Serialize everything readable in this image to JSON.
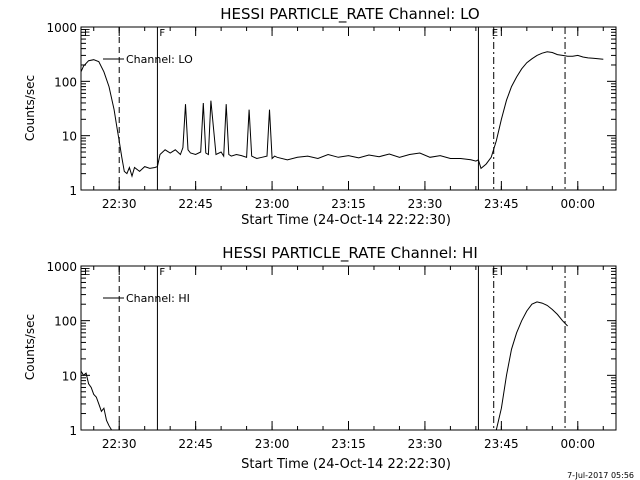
{
  "footer_date": "7-Jul-2017 05:56",
  "chart_data": [
    {
      "type": "line",
      "title": "HESSI PARTICLE_RATE Channel: LO",
      "xlabel": "Start Time (24-Oct-14 22:22:30)",
      "ylabel": "Counts/sec",
      "yscale": "log",
      "ylim": [
        1,
        1000
      ],
      "xlim": [
        "22:22:30",
        "00:07:30"
      ],
      "ytick_labels": [
        "1",
        "10",
        "100",
        "1000"
      ],
      "xtick_labels": [
        "22:30",
        "22:45",
        "23:00",
        "23:15",
        "23:30",
        "23:45",
        "00:00"
      ],
      "legend": "Channel: LO",
      "flag_labels": [
        "E",
        "F",
        "E"
      ],
      "markers": [
        {
          "style": "solid",
          "x": "22:37:30"
        },
        {
          "style": "solid",
          "x": "23:40:30"
        },
        {
          "style": "dashed",
          "x": "22:30:00"
        },
        {
          "style": "dashdot",
          "x": "23:43:30"
        },
        {
          "style": "dashdot",
          "x": "23:57:30"
        }
      ],
      "series": [
        {
          "x": [
            "22:22:30",
            "22:23:00",
            "22:24:00",
            "22:25:00",
            "22:26:00",
            "22:27:00",
            "22:28:00",
            "22:29:00",
            "22:29:30",
            "22:30:00",
            "22:30:30",
            "22:31:00",
            "22:31:30",
            "22:32:00",
            "22:32:30",
            "22:33:00",
            "22:34:00",
            "22:35:00",
            "22:36:00",
            "22:37:00",
            "22:37:30",
            "22:38:00",
            "22:39:00",
            "22:40:00",
            "22:41:00",
            "22:42:00",
            "22:42:30",
            "22:43:00",
            "22:43:30",
            "22:44:00",
            "22:45:00",
            "22:46:00",
            "22:46:30",
            "22:47:00",
            "22:47:30",
            "22:48:00",
            "22:49:00",
            "22:50:00",
            "22:50:30",
            "22:51:00",
            "22:51:30",
            "22:52:00",
            "22:53:00",
            "22:54:00",
            "22:55:00",
            "22:55:30",
            "22:56:00",
            "22:56:30",
            "22:57:00",
            "22:58:00",
            "22:59:00",
            "22:59:30",
            "23:00:00",
            "23:00:30",
            "23:01:00",
            "23:03:00",
            "23:05:00",
            "23:07:00",
            "23:09:00",
            "23:11:00",
            "23:13:00",
            "23:15:00",
            "23:17:00",
            "23:19:00",
            "23:21:00",
            "23:23:00",
            "23:25:00",
            "23:27:00",
            "23:29:00",
            "23:31:00",
            "23:33:00",
            "23:35:00",
            "23:37:00",
            "23:39:00",
            "23:40:00",
            "23:40:30",
            "23:41:00",
            "23:42:00",
            "23:43:00",
            "23:44:00",
            "23:45:00",
            "23:46:00",
            "23:47:00",
            "23:48:00",
            "23:49:00",
            "23:50:00",
            "23:51:00",
            "23:52:00",
            "23:53:00",
            "23:54:00",
            "23:55:00",
            "23:56:00",
            "23:57:00",
            "23:58:00",
            "23:59:00",
            "00:00:00",
            "00:01:00",
            "00:02:00",
            "00:03:00",
            "00:04:00",
            "00:05:00"
          ],
          "values": [
            150,
            190,
            240,
            250,
            230,
            150,
            80,
            30,
            15,
            8,
            4,
            2.2,
            2.0,
            2.6,
            1.8,
            2.6,
            2.2,
            2.7,
            2.5,
            2.6,
            2.7,
            4.5,
            5.5,
            4.8,
            5.5,
            4.5,
            6.0,
            38,
            5.5,
            4.8,
            4.5,
            5.0,
            40,
            4.8,
            4.5,
            44,
            4.5,
            5.0,
            4.2,
            38,
            4.5,
            4.2,
            4.5,
            4.3,
            4.0,
            30,
            4.2,
            4.0,
            3.8,
            4.0,
            4.2,
            30,
            3.8,
            4.2,
            4.0,
            3.6,
            4.0,
            4.2,
            3.8,
            4.5,
            4.0,
            4.3,
            3.9,
            4.4,
            4.1,
            4.6,
            4.0,
            4.5,
            4.8,
            4.0,
            4.3,
            3.8,
            3.8,
            3.6,
            3.4,
            3.6,
            2.5,
            3.0,
            4.0,
            8,
            20,
            45,
            80,
            120,
            170,
            220,
            260,
            300,
            330,
            350,
            340,
            310,
            300,
            290,
            290,
            300,
            280,
            270,
            265,
            260,
            255
          ]
        }
      ]
    },
    {
      "type": "line",
      "title": "HESSI PARTICLE_RATE Channel: HI",
      "xlabel": "Start Time (24-Oct-14 22:22:30)",
      "ylabel": "Counts/sec",
      "yscale": "log",
      "ylim": [
        1,
        1000
      ],
      "xlim": [
        "22:22:30",
        "00:07:30"
      ],
      "ytick_labels": [
        "1",
        "10",
        "100",
        "1000"
      ],
      "xtick_labels": [
        "22:30",
        "22:45",
        "23:00",
        "23:15",
        "23:30",
        "23:45",
        "00:00"
      ],
      "legend": "Channel: HI",
      "flag_labels": [
        "E",
        "F",
        "E"
      ],
      "markers": [
        {
          "style": "solid",
          "x": "22:37:30"
        },
        {
          "style": "solid",
          "x": "23:40:30"
        },
        {
          "style": "dashed",
          "x": "22:30:00"
        },
        {
          "style": "dashdot",
          "x": "23:43:30"
        },
        {
          "style": "dashdot",
          "x": "23:57:30"
        }
      ],
      "series": [
        {
          "segments": [
            {
              "x": [
                "22:22:30",
                "22:23:00",
                "22:23:30",
                "22:24:00",
                "22:24:30",
                "22:25:00",
                "22:25:30",
                "22:26:00",
                "22:26:30",
                "22:27:00",
                "22:27:30",
                "22:28:00",
                "22:28:30"
              ],
              "values": [
                12,
                10,
                11,
                7,
                6,
                4.5,
                4,
                3,
                2.2,
                2.5,
                1.5,
                1.2,
                1.0
              ]
            },
            {
              "x": [
                "23:44:00",
                "23:45:00",
                "23:46:00",
                "23:47:00",
                "23:48:00",
                "23:49:00",
                "23:50:00",
                "23:51:00",
                "23:52:00",
                "23:53:00",
                "23:54:00",
                "23:55:00",
                "23:56:00",
                "23:57:00",
                "23:58:00"
              ],
              "values": [
                1.0,
                2.5,
                10,
                30,
                60,
                100,
                150,
                200,
                220,
                210,
                190,
                160,
                130,
                100,
                80
              ]
            }
          ]
        }
      ]
    }
  ]
}
